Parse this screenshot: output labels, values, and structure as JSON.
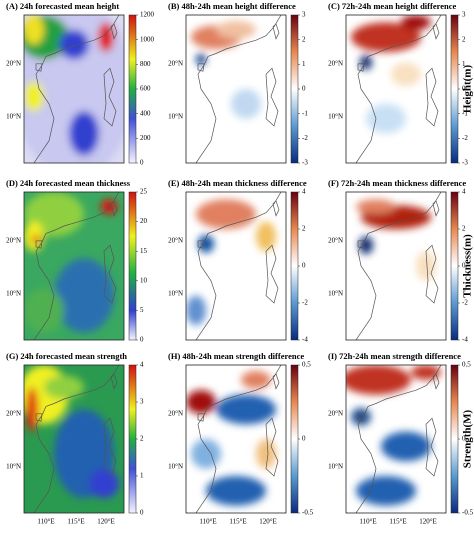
{
  "panels": [
    {
      "title": "(A) 24h forecasted mean height",
      "lat_labels": [
        "20°N",
        "10°N"
      ],
      "colorbar_ticks": [
        0,
        200,
        400,
        600,
        800,
        1000,
        1200
      ]
    },
    {
      "title": "(B) 48h-24h mean height difference",
      "lat_labels": [
        "20°N",
        "10°N"
      ],
      "colorbar_ticks": [
        -3,
        -2,
        -1,
        0,
        1,
        2,
        3
      ]
    },
    {
      "title": "(C) 72h-24h mean height difference",
      "lat_labels": [
        "20°N",
        "10°N"
      ],
      "colorbar_ticks": [
        -3,
        -2,
        -1,
        0,
        1,
        2,
        3
      ]
    },
    {
      "title": "(D) 24h forecasted mean thickness",
      "lat_labels": [
        "20°N",
        "10°N"
      ],
      "colorbar_ticks": [
        0,
        5,
        10,
        15,
        20,
        25
      ]
    },
    {
      "title": "(E) 48h-24h mean thickness difference",
      "lat_labels": [
        "20°N",
        "10°N"
      ],
      "colorbar_ticks": [
        -4,
        -2,
        0,
        2,
        4
      ]
    },
    {
      "title": "(F) 72h-24h mean thickness difference",
      "lat_labels": [
        "20°N",
        "10°N"
      ],
      "colorbar_ticks": [
        -4,
        -2,
        0,
        2,
        4
      ]
    },
    {
      "title": "(G) 24h forecasted mean strength",
      "lat_labels": [
        "20°N",
        "10°N"
      ],
      "colorbar_ticks": [
        0,
        1,
        2,
        3,
        4
      ]
    },
    {
      "title": "(H) 48h-24h mean strength difference",
      "lat_labels": [
        "20°N",
        "10°N"
      ],
      "colorbar_ticks": [
        -0.5,
        0,
        0.5
      ]
    },
    {
      "title": "(I) 72h-24h mean strength difference",
      "lat_labels": [
        "20°N",
        "10°N"
      ],
      "colorbar_ticks": [
        -0.5,
        0,
        0.5
      ]
    }
  ],
  "lon_labels": [
    "110°E",
    "115°E",
    "120°E"
  ],
  "row_labels": [
    "Height(m)",
    "Thickness(m)",
    "Strength(M)"
  ]
}
